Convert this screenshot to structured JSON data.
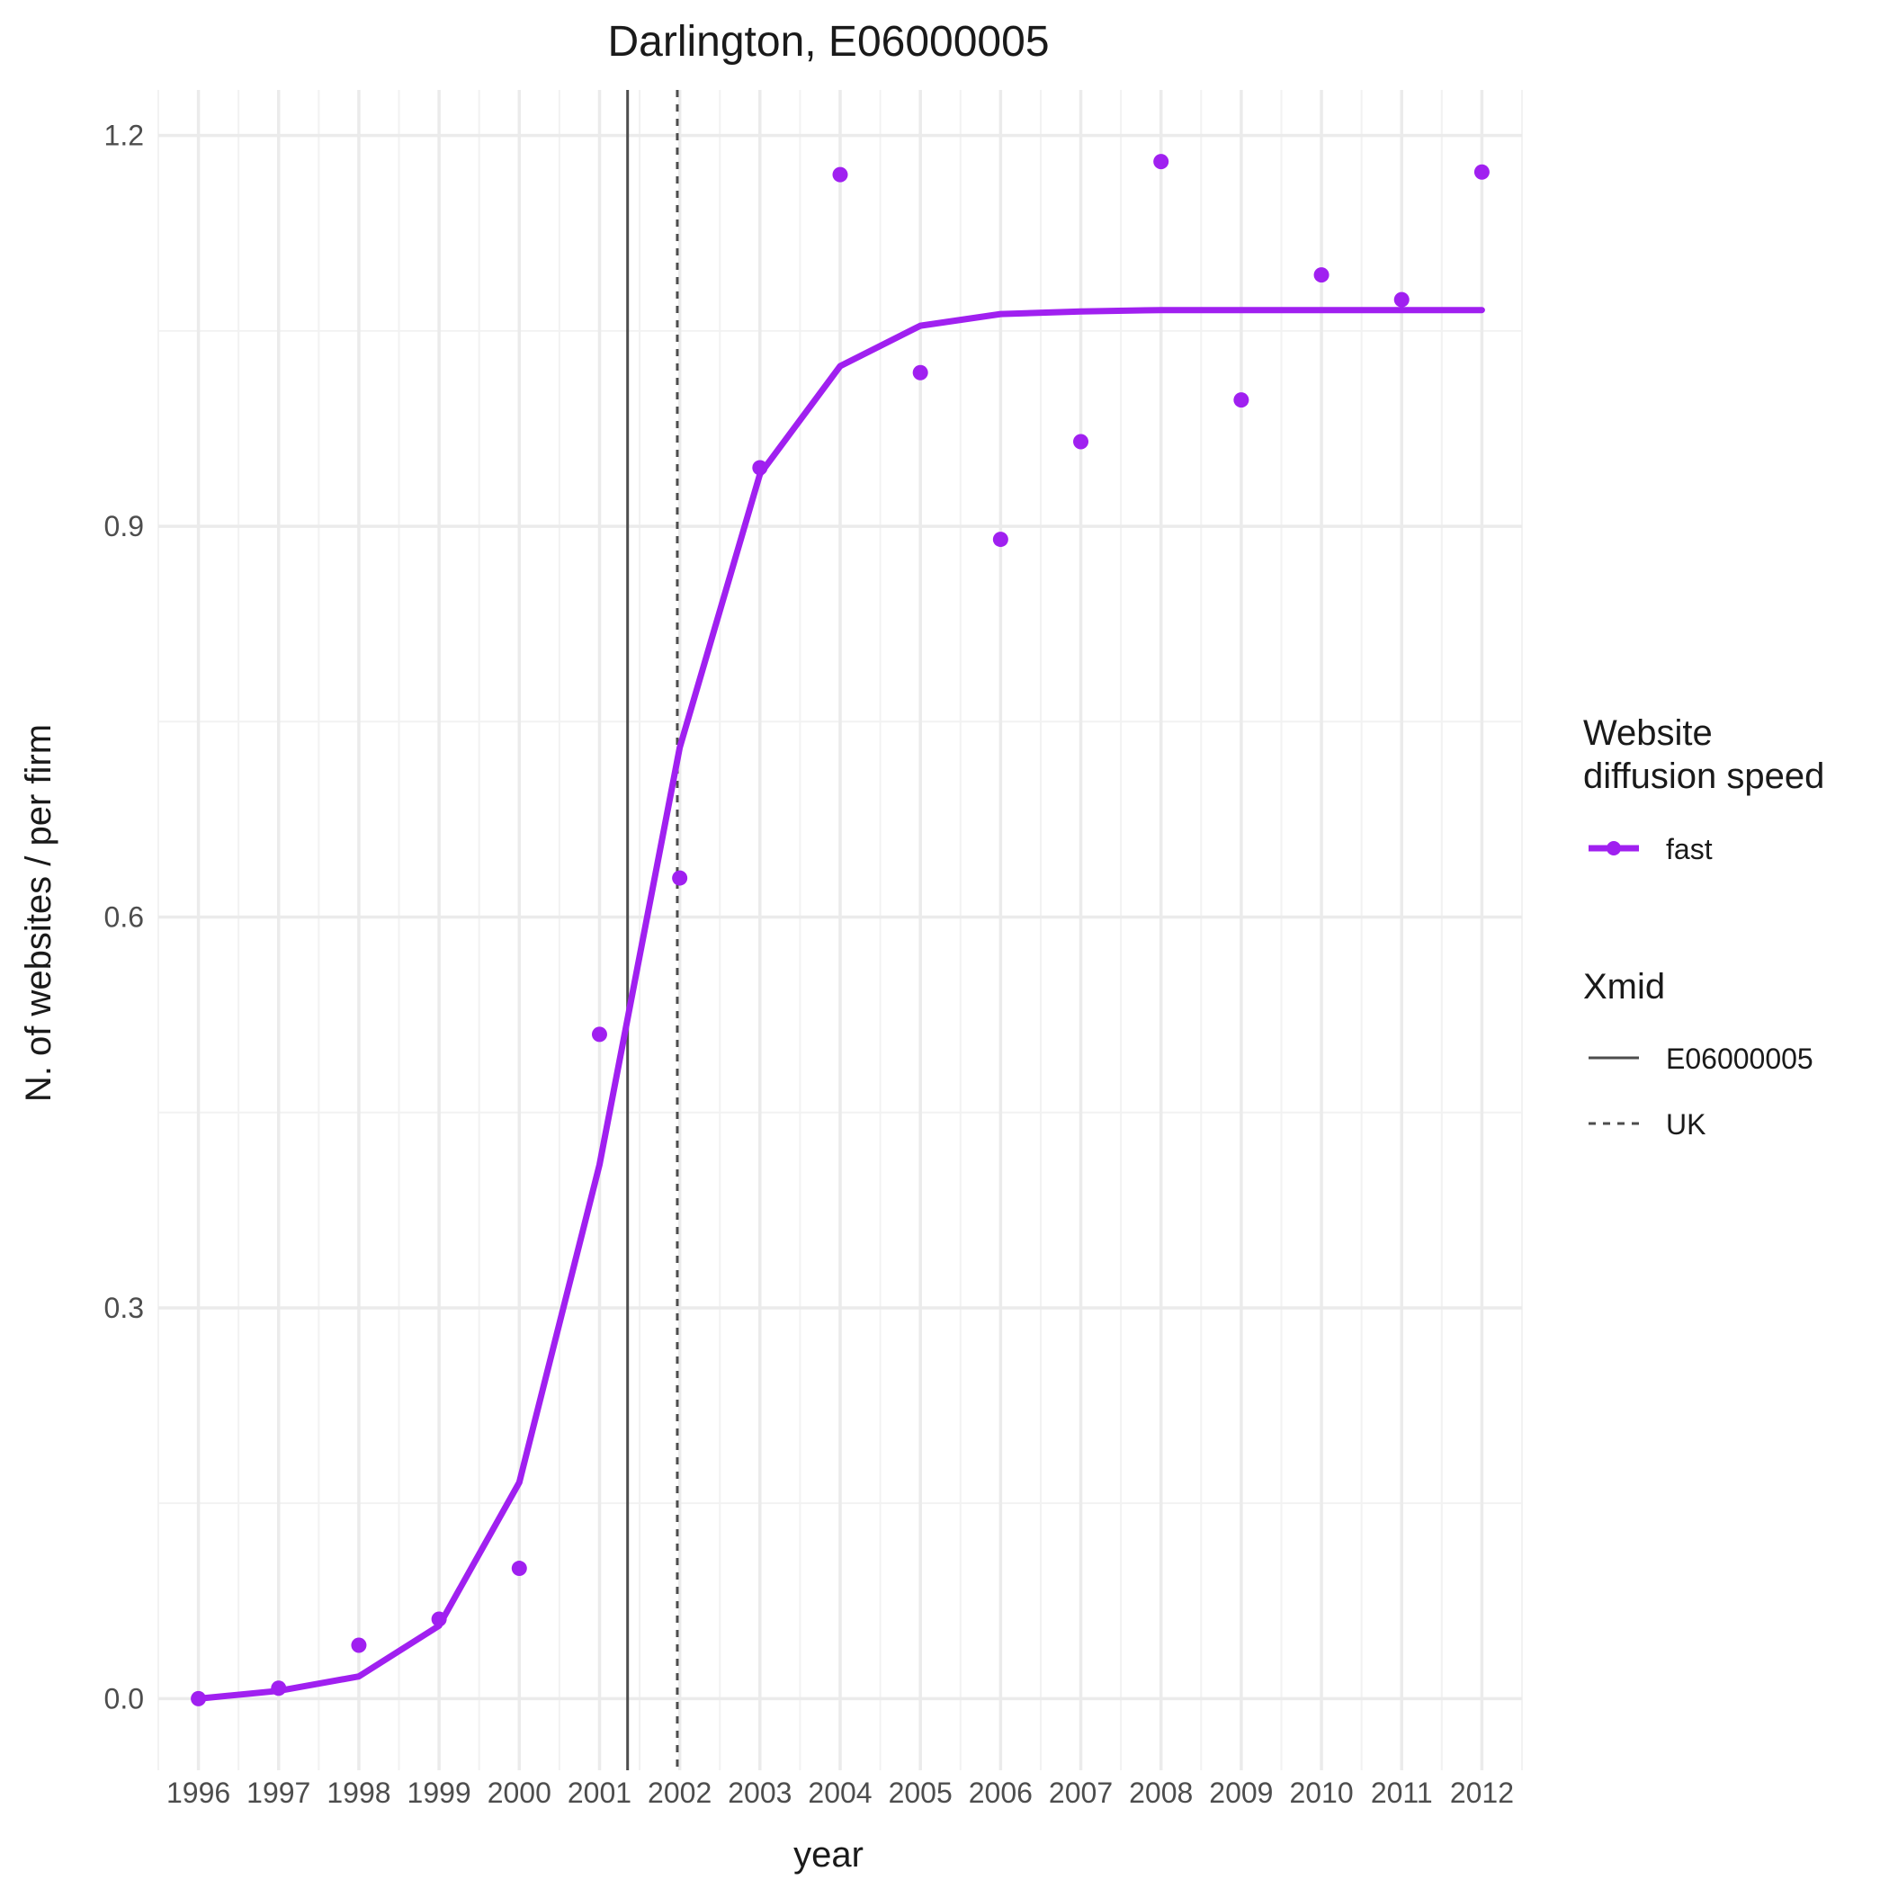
{
  "chart_data": {
    "type": "line",
    "title": "Darlington, E06000005",
    "xlabel": "year",
    "ylabel": "N. of websites / per firm",
    "x": [
      1996,
      1997,
      1998,
      1999,
      2000,
      2001,
      2002,
      2003,
      2004,
      2005,
      2006,
      2007,
      2008,
      2009,
      2010,
      2011,
      2012
    ],
    "x_ticks": [
      "1996",
      "1997",
      "1998",
      "1999",
      "2000",
      "2001",
      "2002",
      "2003",
      "2004",
      "2005",
      "2006",
      "2007",
      "2008",
      "2009",
      "2010",
      "2011",
      "2012"
    ],
    "y_ticks": [
      0.0,
      0.3,
      0.6,
      0.9,
      1.2
    ],
    "y_tick_labels": [
      "0.0",
      "0.3",
      "0.6",
      "0.9",
      "1.2"
    ],
    "xlim": [
      1995.5,
      2012.5
    ],
    "ylim": [
      -0.055,
      1.235
    ],
    "grid": true,
    "color": "#a020f0",
    "series": [
      {
        "name": "fast",
        "points": [
          0.0,
          0.008,
          0.041,
          0.061,
          0.1,
          0.51,
          0.63,
          0.945,
          1.17,
          1.018,
          0.89,
          0.965,
          1.18,
          0.997,
          1.093,
          1.074,
          1.172
        ],
        "fitted": [
          0.0,
          0.006,
          0.017,
          0.056,
          0.166,
          0.41,
          0.73,
          0.94,
          1.023,
          1.054,
          1.063,
          1.065,
          1.066,
          1.066,
          1.066,
          1.066,
          1.066
        ]
      }
    ],
    "vlines": [
      {
        "name": "E06000005",
        "x": 2001.35,
        "style": "solid"
      },
      {
        "name": "UK",
        "x": 2001.97,
        "style": "dashed"
      }
    ],
    "legend": {
      "placement": "right",
      "speed_title_line1": "Website",
      "speed_title_line2": "diffusion speed",
      "speed_entries": [
        "fast"
      ],
      "xmid_title": "Xmid",
      "xmid_entries": [
        "E06000005",
        "UK"
      ]
    }
  }
}
